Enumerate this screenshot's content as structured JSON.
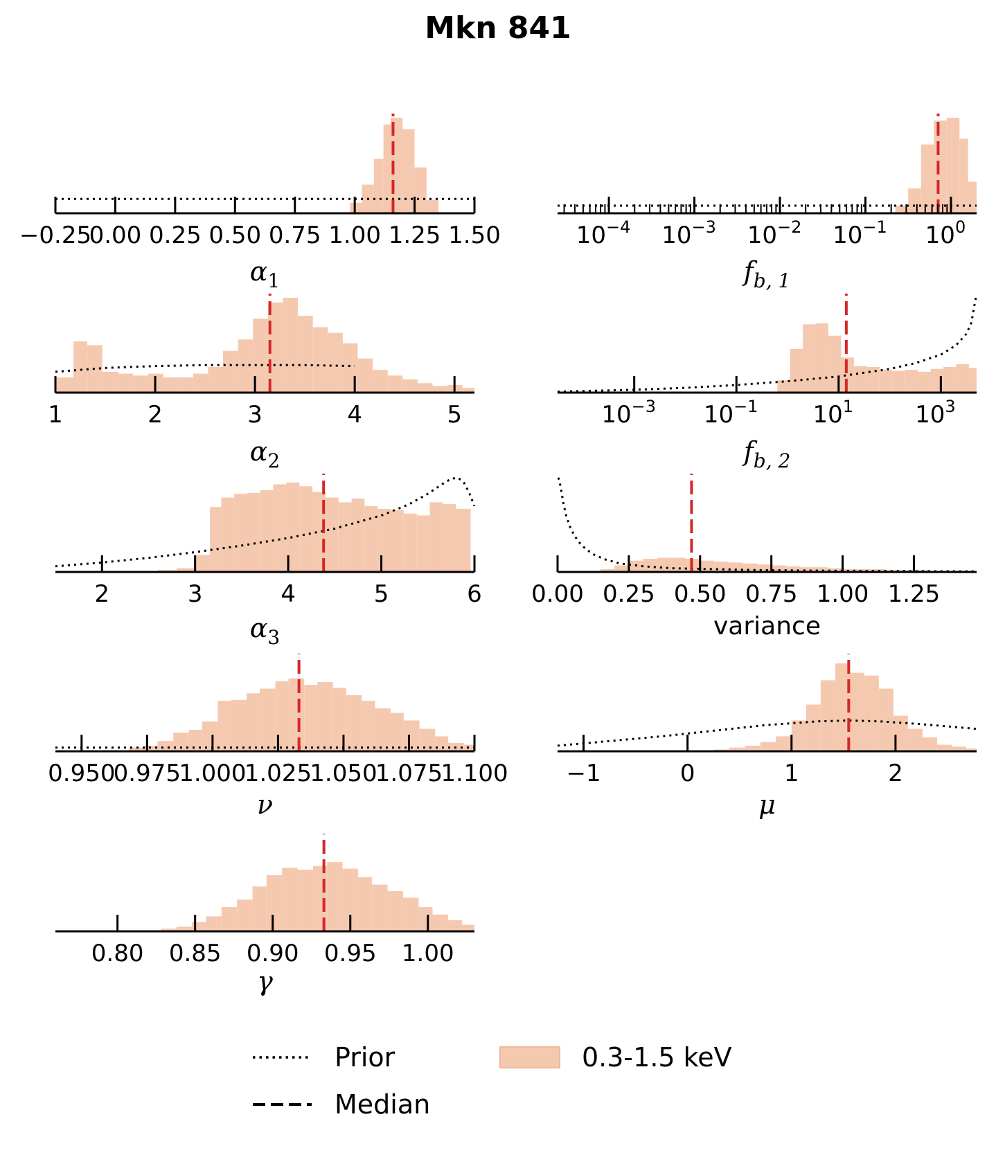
{
  "figure": {
    "title": "Mkn 841"
  },
  "legend": {
    "placement": "bottom-center",
    "prior_label": "Prior",
    "median_label": "Median",
    "hist_label": "0.3-1.5 keV"
  },
  "colors": {
    "hist": "#f5c9b0",
    "median": "#d62728",
    "prior": "#000000",
    "axis": "#000000"
  },
  "chart_data": [
    {
      "type": "bar",
      "subtype": "histogram",
      "xlabel": "α₁",
      "xlabel_base": "α",
      "xlabel_sub": "1",
      "xscale": "linear",
      "xlim": [
        -0.25,
        1.5
      ],
      "ticks": [
        -0.25,
        0.0,
        0.25,
        0.5,
        0.75,
        1.0,
        1.25,
        1.5
      ],
      "tick_labels": [
        "−0.25",
        "0.00",
        "0.25",
        "0.50",
        "0.75",
        "1.00",
        "1.25",
        "1.50"
      ],
      "bins": [
        [
          0.98,
          1.03,
          0.11
        ],
        [
          1.03,
          1.08,
          0.3
        ],
        [
          1.08,
          1.12,
          0.57
        ],
        [
          1.12,
          1.15,
          0.93
        ],
        [
          1.15,
          1.2,
          1.0
        ],
        [
          1.2,
          1.25,
          0.88
        ],
        [
          1.25,
          1.3,
          0.48
        ],
        [
          1.3,
          1.35,
          0.14
        ]
      ],
      "median": 1.16,
      "prior": {
        "x": [
          -0.25,
          1.5
        ],
        "y": [
          0.15,
          0.15
        ]
      }
    },
    {
      "type": "bar",
      "subtype": "histogram",
      "xlabel": "f_b,1",
      "xlabel_base": "f",
      "xlabel_sub": "b, 1",
      "xscale": "log",
      "xlim": [
        -4.6,
        0.3
      ],
      "ticks": [
        -4,
        -3,
        -2,
        -1,
        0
      ],
      "tick_labels": [
        "10",
        "10",
        "10",
        "10",
        "10"
      ],
      "tick_exps": [
        "−4",
        "−3",
        "−2",
        "−1",
        "0"
      ],
      "bins": [
        [
          -0.65,
          -0.5,
          0.08
        ],
        [
          -0.5,
          -0.35,
          0.26
        ],
        [
          -0.35,
          -0.2,
          0.72
        ],
        [
          -0.2,
          -0.05,
          0.97
        ],
        [
          -0.05,
          0.1,
          1.0
        ],
        [
          0.1,
          0.2,
          0.78
        ],
        [
          0.2,
          0.3,
          0.33
        ]
      ],
      "median": -0.15,
      "prior": {
        "x": [
          -4.6,
          0.3
        ],
        "y": [
          0.08,
          0.08
        ]
      }
    },
    {
      "type": "bar",
      "subtype": "histogram",
      "xlabel": "α₂",
      "xlabel_base": "α",
      "xlabel_sub": "2",
      "xscale": "linear",
      "xlim": [
        1,
        5.2
      ],
      "ticks": [
        1,
        2,
        3,
        4,
        5
      ],
      "tick_labels": [
        "1",
        "2",
        "3",
        "4",
        "5"
      ],
      "bins": [
        [
          1.0,
          1.18,
          0.16
        ],
        [
          1.18,
          1.32,
          0.54
        ],
        [
          1.32,
          1.47,
          0.5
        ],
        [
          1.47,
          1.63,
          0.22
        ],
        [
          1.63,
          1.78,
          0.2
        ],
        [
          1.78,
          1.93,
          0.18
        ],
        [
          1.93,
          2.08,
          0.2
        ],
        [
          2.08,
          2.23,
          0.16
        ],
        [
          2.23,
          2.38,
          0.16
        ],
        [
          2.38,
          2.53,
          0.2
        ],
        [
          2.53,
          2.68,
          0.27
        ],
        [
          2.68,
          2.83,
          0.44
        ],
        [
          2.83,
          2.98,
          0.56
        ],
        [
          2.98,
          3.13,
          0.78
        ],
        [
          3.13,
          3.28,
          0.95
        ],
        [
          3.28,
          3.43,
          1.0
        ],
        [
          3.43,
          3.58,
          0.81
        ],
        [
          3.58,
          3.73,
          0.69
        ],
        [
          3.73,
          3.88,
          0.63
        ],
        [
          3.88,
          4.03,
          0.52
        ],
        [
          4.03,
          4.18,
          0.36
        ],
        [
          4.18,
          4.33,
          0.24
        ],
        [
          4.33,
          4.48,
          0.18
        ],
        [
          4.48,
          4.63,
          0.14
        ],
        [
          4.63,
          4.78,
          0.1
        ],
        [
          4.78,
          4.93,
          0.07
        ],
        [
          4.93,
          5.08,
          0.08
        ],
        [
          5.08,
          5.2,
          0.05
        ]
      ],
      "median": 3.15,
      "prior": {
        "x": [
          1,
          1.5,
          2,
          2.5,
          3,
          3.5,
          4
        ],
        "y": [
          0.22,
          0.26,
          0.28,
          0.29,
          0.29,
          0.29,
          0.28
        ]
      }
    },
    {
      "type": "bar",
      "subtype": "histogram",
      "xlabel": "f_b,2",
      "xlabel_base": "f",
      "xlabel_sub": "b, 2",
      "xscale": "log",
      "xlim": [
        -4.5,
        3.7
      ],
      "ticks": [
        -3,
        -1,
        1,
        3
      ],
      "tick_labels": [
        "10",
        "10",
        "10",
        "10"
      ],
      "tick_exps": [
        "−3",
        "−1",
        "1",
        "3"
      ],
      "bins": [
        [
          -0.2,
          0.05,
          0.13
        ],
        [
          0.05,
          0.3,
          0.46
        ],
        [
          0.3,
          0.55,
          0.72
        ],
        [
          0.55,
          0.8,
          0.73
        ],
        [
          0.8,
          1.05,
          0.6
        ],
        [
          1.05,
          1.3,
          0.37
        ],
        [
          1.3,
          1.55,
          0.28
        ],
        [
          1.55,
          1.8,
          0.27
        ],
        [
          1.8,
          2.05,
          0.24
        ],
        [
          2.05,
          2.3,
          0.23
        ],
        [
          2.3,
          2.55,
          0.24
        ],
        [
          2.55,
          2.8,
          0.22
        ],
        [
          2.8,
          3.05,
          0.25
        ],
        [
          3.05,
          3.3,
          0.27
        ],
        [
          3.3,
          3.55,
          0.3
        ],
        [
          3.55,
          3.7,
          0.26
        ]
      ],
      "median": 1.15,
      "prior": {
        "x": [
          -4.5,
          -3,
          -2,
          -1,
          0,
          1,
          2,
          2.5,
          3,
          3.3,
          3.5,
          3.6,
          3.65,
          3.7
        ],
        "y": [
          0.01,
          0.03,
          0.05,
          0.08,
          0.12,
          0.17,
          0.25,
          0.31,
          0.4,
          0.5,
          0.62,
          0.74,
          0.9,
          1.04
        ]
      }
    },
    {
      "type": "bar",
      "subtype": "histogram",
      "xlabel": "α₃",
      "xlabel_base": "α",
      "xlabel_sub": "3",
      "xscale": "linear",
      "xlim": [
        1.5,
        6
      ],
      "ticks": [
        2,
        3,
        4,
        5,
        6
      ],
      "tick_labels": [
        "2",
        "3",
        "4",
        "5",
        "6"
      ],
      "bins": [
        [
          2.6,
          2.8,
          0.02
        ],
        [
          2.8,
          3.0,
          0.04
        ],
        [
          3.0,
          3.16,
          0.18
        ],
        [
          3.16,
          3.28,
          0.69
        ],
        [
          3.28,
          3.42,
          0.79
        ],
        [
          3.42,
          3.56,
          0.83
        ],
        [
          3.56,
          3.7,
          0.84
        ],
        [
          3.7,
          3.84,
          0.87
        ],
        [
          3.84,
          3.98,
          0.93
        ],
        [
          3.98,
          4.12,
          0.95
        ],
        [
          4.12,
          4.26,
          0.91
        ],
        [
          4.26,
          4.4,
          0.85
        ],
        [
          4.4,
          4.54,
          0.79
        ],
        [
          4.54,
          4.68,
          0.74
        ],
        [
          4.68,
          4.82,
          0.78
        ],
        [
          4.82,
          4.96,
          0.7
        ],
        [
          4.96,
          5.1,
          0.67
        ],
        [
          5.1,
          5.24,
          0.66
        ],
        [
          5.24,
          5.38,
          0.62
        ],
        [
          5.38,
          5.52,
          0.6
        ],
        [
          5.52,
          5.66,
          0.74
        ],
        [
          5.66,
          5.8,
          0.72
        ],
        [
          5.8,
          5.96,
          0.67
        ]
      ],
      "median": 4.38,
      "prior": {
        "x": [
          1.5,
          2,
          2.5,
          3,
          3.5,
          4,
          4.5,
          5,
          5.3,
          5.5,
          5.65,
          5.75,
          5.82,
          5.88,
          5.94,
          6.0
        ],
        "y": [
          0.06,
          0.1,
          0.15,
          0.21,
          0.28,
          0.36,
          0.46,
          0.6,
          0.72,
          0.83,
          0.93,
          0.99,
          1.0,
          0.96,
          0.85,
          0.7
        ]
      }
    },
    {
      "type": "bar",
      "subtype": "histogram",
      "xlabel": "variance",
      "xscale": "linear",
      "xlim": [
        0,
        1.47
      ],
      "ticks": [
        0.0,
        0.25,
        0.5,
        0.75,
        1.0,
        1.25
      ],
      "tick_labels": [
        "0.00",
        "0.25",
        "0.50",
        "0.75",
        "1.00",
        "1.25"
      ],
      "bins": [
        [
          0.15,
          0.2,
          0.03
        ],
        [
          0.2,
          0.25,
          0.07
        ],
        [
          0.25,
          0.3,
          0.12
        ],
        [
          0.3,
          0.35,
          0.14
        ],
        [
          0.35,
          0.4,
          0.15
        ],
        [
          0.4,
          0.45,
          0.15
        ],
        [
          0.45,
          0.5,
          0.14
        ],
        [
          0.5,
          0.55,
          0.12
        ],
        [
          0.55,
          0.6,
          0.11
        ],
        [
          0.6,
          0.65,
          0.1
        ],
        [
          0.65,
          0.7,
          0.09
        ],
        [
          0.7,
          0.75,
          0.08
        ],
        [
          0.75,
          0.8,
          0.07
        ],
        [
          0.8,
          0.85,
          0.06
        ],
        [
          0.85,
          0.9,
          0.05
        ],
        [
          0.9,
          0.95,
          0.05
        ],
        [
          0.95,
          1.0,
          0.04
        ],
        [
          1.0,
          1.05,
          0.03
        ],
        [
          1.05,
          1.1,
          0.03
        ],
        [
          1.1,
          1.15,
          0.03
        ],
        [
          1.15,
          1.2,
          0.02
        ],
        [
          1.2,
          1.25,
          0.02
        ],
        [
          1.25,
          1.3,
          0.02
        ],
        [
          1.3,
          1.35,
          0.01
        ],
        [
          1.35,
          1.4,
          0.01
        ],
        [
          1.4,
          1.45,
          0.01
        ]
      ],
      "median": 0.47,
      "prior": {
        "x": [
          0.002,
          0.006,
          0.012,
          0.02,
          0.03,
          0.045,
          0.06,
          0.08,
          0.1,
          0.13,
          0.17,
          0.22,
          0.3,
          0.4,
          0.55,
          0.7,
          0.9,
          1.1,
          1.3,
          1.47
        ],
        "y": [
          1.0,
          0.98,
          0.88,
          0.74,
          0.6,
          0.47,
          0.38,
          0.3,
          0.24,
          0.18,
          0.13,
          0.09,
          0.06,
          0.04,
          0.03,
          0.02,
          0.015,
          0.01,
          0.008,
          0.006
        ]
      }
    },
    {
      "type": "bar",
      "subtype": "histogram",
      "xlabel": "ν",
      "xlabel_base": "ν",
      "xscale": "linear",
      "xlim": [
        0.94,
        1.1
      ],
      "ticks": [
        0.95,
        0.975,
        1.0,
        1.025,
        1.05,
        1.075,
        1.1
      ],
      "tick_labels": [
        "0.950",
        "0.975",
        "1.000",
        "1.025",
        "1.050",
        "1.075",
        "1.100"
      ],
      "bins": [
        [
          0.968,
          0.974,
          0.04
        ],
        [
          0.974,
          0.979,
          0.06
        ],
        [
          0.979,
          0.985,
          0.11
        ],
        [
          0.985,
          0.991,
          0.2
        ],
        [
          0.991,
          0.996,
          0.23
        ],
        [
          0.996,
          1.002,
          0.32
        ],
        [
          1.002,
          1.007,
          0.54
        ],
        [
          1.007,
          1.013,
          0.55
        ],
        [
          1.013,
          1.018,
          0.62
        ],
        [
          1.018,
          1.024,
          0.67
        ],
        [
          1.024,
          1.029,
          0.75
        ],
        [
          1.029,
          1.035,
          0.78
        ],
        [
          1.035,
          1.04,
          0.71
        ],
        [
          1.04,
          1.046,
          0.74
        ],
        [
          1.046,
          1.051,
          0.68
        ],
        [
          1.051,
          1.057,
          0.6
        ],
        [
          1.057,
          1.062,
          0.54
        ],
        [
          1.062,
          1.068,
          0.46
        ],
        [
          1.068,
          1.073,
          0.41
        ],
        [
          1.073,
          1.079,
          0.33
        ],
        [
          1.079,
          1.085,
          0.24
        ],
        [
          1.085,
          1.09,
          0.16
        ],
        [
          1.09,
          1.096,
          0.09
        ],
        [
          1.096,
          1.1,
          0.07
        ]
      ],
      "median": 1.033,
      "prior": {
        "x": [
          0.94,
          1.1
        ],
        "y": [
          0.04,
          0.04
        ]
      }
    },
    {
      "type": "bar",
      "subtype": "histogram",
      "xlabel": "μ",
      "xlabel_base": "μ",
      "xscale": "linear",
      "xlim": [
        -1.25,
        2.78
      ],
      "ticks": [
        -1,
        0,
        1,
        2
      ],
      "tick_labels": [
        "−1",
        "0",
        "1",
        "2"
      ],
      "bins": [
        [
          0.25,
          0.4,
          0.02
        ],
        [
          0.4,
          0.55,
          0.04
        ],
        [
          0.55,
          0.7,
          0.06
        ],
        [
          0.7,
          0.85,
          0.1
        ],
        [
          0.85,
          1.0,
          0.16
        ],
        [
          1.0,
          1.14,
          0.33
        ],
        [
          1.14,
          1.28,
          0.5
        ],
        [
          1.28,
          1.42,
          0.76
        ],
        [
          1.42,
          1.56,
          0.94
        ],
        [
          1.56,
          1.7,
          0.84
        ],
        [
          1.7,
          1.84,
          0.81
        ],
        [
          1.84,
          1.98,
          0.67
        ],
        [
          1.98,
          2.12,
          0.38
        ],
        [
          2.12,
          2.26,
          0.24
        ],
        [
          2.26,
          2.4,
          0.15
        ],
        [
          2.4,
          2.54,
          0.07
        ],
        [
          2.54,
          2.68,
          0.05
        ],
        [
          2.68,
          2.78,
          0.03
        ]
      ],
      "median": 1.55,
      "prior": {
        "x": [
          -1.25,
          -0.75,
          -0.25,
          0.25,
          0.75,
          1.25,
          1.55,
          1.85,
          2.25,
          2.78
        ],
        "y": [
          0.06,
          0.11,
          0.16,
          0.22,
          0.28,
          0.32,
          0.33,
          0.32,
          0.29,
          0.24
        ]
      }
    },
    {
      "type": "bar",
      "subtype": "histogram",
      "xlabel": "γ",
      "xlabel_base": "γ",
      "xscale": "linear",
      "xlim": [
        0.76,
        1.03
      ],
      "ticks": [
        0.8,
        0.85,
        0.9,
        0.95,
        1.0
      ],
      "tick_labels": [
        "0.80",
        "0.85",
        "0.90",
        "0.95",
        "1.00"
      ],
      "bins": [
        [
          0.828,
          0.838,
          0.03
        ],
        [
          0.838,
          0.848,
          0.05
        ],
        [
          0.848,
          0.857,
          0.1
        ],
        [
          0.857,
          0.867,
          0.16
        ],
        [
          0.867,
          0.877,
          0.26
        ],
        [
          0.877,
          0.887,
          0.34
        ],
        [
          0.887,
          0.896,
          0.48
        ],
        [
          0.896,
          0.906,
          0.6
        ],
        [
          0.906,
          0.916,
          0.68
        ],
        [
          0.916,
          0.926,
          0.66
        ],
        [
          0.926,
          0.935,
          0.7
        ],
        [
          0.935,
          0.945,
          0.74
        ],
        [
          0.945,
          0.955,
          0.67
        ],
        [
          0.955,
          0.964,
          0.58
        ],
        [
          0.964,
          0.974,
          0.5
        ],
        [
          0.974,
          0.984,
          0.43
        ],
        [
          0.984,
          0.994,
          0.36
        ],
        [
          0.994,
          1.003,
          0.26
        ],
        [
          1.003,
          1.013,
          0.18
        ],
        [
          1.013,
          1.022,
          0.12
        ],
        [
          1.022,
          1.03,
          0.07
        ]
      ],
      "median": 0.933,
      "prior": null
    }
  ]
}
